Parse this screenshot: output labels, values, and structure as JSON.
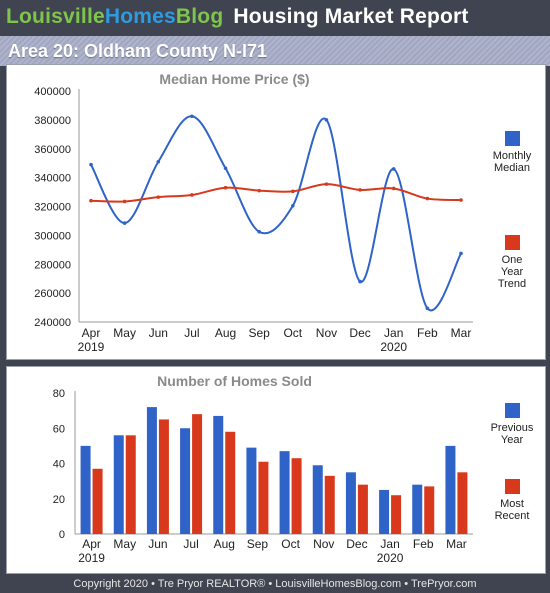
{
  "header": {
    "brand_part1": "Louisville",
    "brand_part2": "Homes",
    "brand_part3": "Blog",
    "report_title": "Housing Market Report"
  },
  "area_title": "Area 20: Oldham County N-I71",
  "colors": {
    "monthly": "#2f63c8",
    "trend": "#d8391c",
    "previous": "#2f63c8",
    "recent": "#d8391c",
    "brand_green": "#7fc44b",
    "brand_blue": "#2e9be0"
  },
  "legend": {
    "monthly_line1": "Monthly",
    "monthly_line2": "Median",
    "trend_line1": "One",
    "trend_line2": "Year",
    "trend_line3": "Trend",
    "previous_line1": "Previous",
    "previous_line2": "Year",
    "recent_line1": "Most",
    "recent_line2": "Recent"
  },
  "footer": "Copyright 2020 • Tre Pryor REALTOR® • LouisvilleHomesBlog.com • TrePryor.com",
  "chart_data": [
    {
      "type": "line",
      "title": "Median Home Price ($)",
      "categories": [
        "Apr",
        "May",
        "Jun",
        "Jul",
        "Aug",
        "Sep",
        "Oct",
        "Nov",
        "Dec",
        "Jan",
        "Feb",
        "Mar"
      ],
      "year_labels": [
        "2019",
        "2020"
      ],
      "y_ticks": [
        "400000",
        "380000",
        "360000",
        "340000",
        "320000",
        "300000",
        "280000",
        "260000",
        "240000"
      ],
      "ylim": [
        240000,
        400000
      ],
      "smooth": true,
      "legend_position": "right",
      "series": [
        {
          "name": "Monthly Median",
          "values": [
            349000,
            308500,
            351000,
            382500,
            346500,
            302500,
            320500,
            380000,
            268000,
            346000,
            249500,
            287500
          ]
        },
        {
          "name": "One Year Trend",
          "values": [
            324000,
            323500,
            326500,
            328000,
            333000,
            331000,
            330500,
            335500,
            331500,
            332500,
            325500,
            324500
          ]
        }
      ]
    },
    {
      "type": "bar",
      "title": "Number of Homes Sold",
      "categories": [
        "Apr",
        "May",
        "Jun",
        "Jul",
        "Aug",
        "Sep",
        "Oct",
        "Nov",
        "Dec",
        "Jan",
        "Feb",
        "Mar"
      ],
      "year_labels": [
        "2019",
        "2020"
      ],
      "y_ticks": [
        "80",
        "60",
        "40",
        "20",
        "0"
      ],
      "ylim": [
        0,
        80
      ],
      "legend_position": "right",
      "series": [
        {
          "name": "Previous Year",
          "values": [
            50,
            56,
            72,
            60,
            67,
            49,
            47,
            39,
            35,
            25,
            28,
            50
          ]
        },
        {
          "name": "Most Recent",
          "values": [
            37,
            56,
            65,
            68,
            58,
            41,
            43,
            33,
            28,
            22,
            27,
            35
          ]
        }
      ]
    }
  ]
}
